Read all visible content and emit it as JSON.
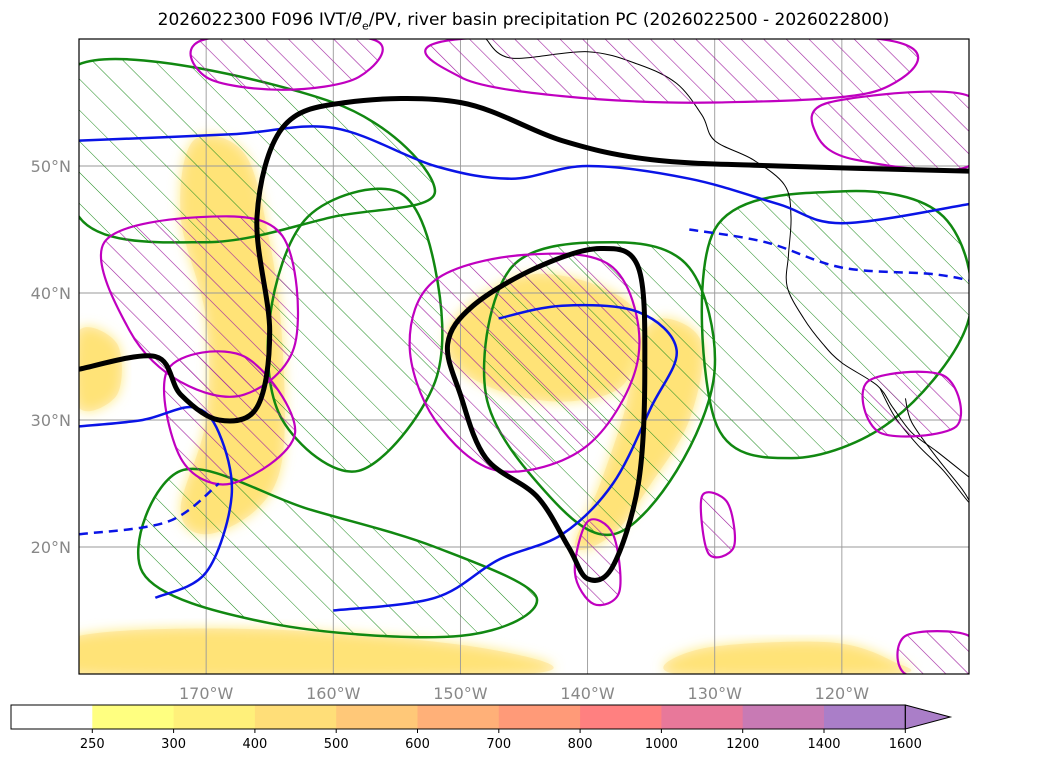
{
  "chart_data": {
    "type": "map-contour",
    "title_prefix": "2026022300 F096 IVT/",
    "title_theta": "θ",
    "title_sub": "e",
    "title_suffix": "/PV, river basin precipitation PC (2026022500 - 2026022800)",
    "lon_range": [
      -180,
      -110
    ],
    "lat_range": [
      10,
      60
    ],
    "x_ticks": [
      {
        "lon": -170,
        "label": "170°W"
      },
      {
        "lon": -160,
        "label": "160°W"
      },
      {
        "lon": -150,
        "label": "150°W"
      },
      {
        "lon": -140,
        "label": "140°W"
      },
      {
        "lon": -130,
        "label": "130°W"
      },
      {
        "lon": -120,
        "label": "120°W"
      }
    ],
    "y_ticks": [
      {
        "lat": 20,
        "label": "20°N"
      },
      {
        "lat": 30,
        "label": "30°N"
      },
      {
        "lat": 40,
        "label": "40°N"
      },
      {
        "lat": 50,
        "label": "50°N"
      }
    ],
    "grid": true,
    "colorbar": {
      "levels": [
        "250",
        "300",
        "400",
        "500",
        "600",
        "700",
        "800",
        "1000",
        "1200",
        "1400",
        "1600"
      ],
      "colors": [
        "#ffffff",
        "#ffff80",
        "#fff07a",
        "#ffde78",
        "#ffc878",
        "#ffb078",
        "#ff9a78",
        "#ff8080",
        "#e8789a",
        "#c87ab4",
        "#aa7ec8"
      ],
      "extend": "max"
    },
    "ivt_regions": [
      {
        "name": "ivt-west-band",
        "points": [
          [
            -171,
            52
          ],
          [
            -167,
            51
          ],
          [
            -165,
            44
          ],
          [
            -164,
            36
          ],
          [
            -164,
            27
          ],
          [
            -166,
            23
          ],
          [
            -170,
            21
          ],
          [
            -172,
            23
          ],
          [
            -170,
            30
          ],
          [
            -170,
            38
          ],
          [
            -172,
            46
          ]
        ]
      },
      {
        "name": "ivt-central-blob",
        "points": [
          [
            -148,
            40
          ],
          [
            -144,
            41.5
          ],
          [
            -139,
            40.5
          ],
          [
            -136,
            38
          ],
          [
            -137,
            33
          ],
          [
            -141,
            31.5
          ],
          [
            -146,
            32
          ],
          [
            -150,
            34
          ],
          [
            -151,
            37
          ]
        ]
      },
      {
        "name": "ivt-east-band",
        "points": [
          [
            -134,
            38
          ],
          [
            -131,
            36
          ],
          [
            -132,
            30
          ],
          [
            -135,
            25
          ],
          [
            -138,
            21
          ],
          [
            -141,
            20
          ],
          [
            -139,
            25
          ],
          [
            -137,
            31
          ],
          [
            -136,
            36
          ]
        ]
      },
      {
        "name": "ivt-south-left",
        "points": [
          [
            -180,
            13
          ],
          [
            -165,
            13.5
          ],
          [
            -148,
            12
          ],
          [
            -145,
            10
          ],
          [
            -180,
            10
          ]
        ]
      },
      {
        "name": "ivt-south-right",
        "points": [
          [
            -131,
            12
          ],
          [
            -121,
            12.5
          ],
          [
            -116,
            11
          ],
          [
            -116,
            10
          ],
          [
            -133,
            10
          ]
        ]
      },
      {
        "name": "ivt-far-west",
        "points": [
          [
            -180,
            37
          ],
          [
            -177,
            36
          ],
          [
            -177,
            32
          ],
          [
            -180,
            31
          ]
        ]
      }
    ],
    "pv_contours": [
      {
        "name": "pv-west-contour",
        "points": [
          [
            -180,
            34
          ],
          [
            -174,
            35
          ],
          [
            -172,
            32
          ],
          [
            -169,
            30
          ],
          [
            -166,
            31
          ],
          [
            -165,
            37
          ],
          [
            -166,
            46
          ],
          [
            -164,
            53
          ],
          [
            -159,
            55
          ],
          [
            -150,
            55
          ],
          [
            -142,
            52
          ],
          [
            -135,
            50.5
          ],
          [
            -125,
            50
          ],
          [
            -110,
            49.6
          ]
        ]
      },
      {
        "name": "pv-central-contour",
        "points": [
          [
            -149,
            39
          ],
          [
            -144,
            42
          ],
          [
            -139,
            43.5
          ],
          [
            -136,
            42
          ],
          [
            -135.5,
            34
          ],
          [
            -136,
            25
          ],
          [
            -138,
            18.5
          ],
          [
            -140,
            17.5
          ],
          [
            -141.5,
            20
          ],
          [
            -144,
            24
          ],
          [
            -148,
            27
          ],
          [
            -150,
            32
          ],
          [
            -151,
            36
          ]
        ]
      }
    ],
    "thetae_contours": [
      {
        "name": "thetae-north",
        "points": [
          [
            -180,
            52
          ],
          [
            -168,
            52.5
          ],
          [
            -160,
            53
          ],
          [
            -152,
            50
          ],
          [
            -146,
            49
          ],
          [
            -140,
            50
          ],
          [
            -132,
            49
          ],
          [
            -125,
            47
          ],
          [
            -120,
            45.5
          ],
          [
            -110,
            47
          ]
        ]
      },
      {
        "name": "thetae-central",
        "points": [
          [
            -147,
            38
          ],
          [
            -142,
            39
          ],
          [
            -136,
            38.5
          ],
          [
            -133,
            35.5
          ],
          [
            -135,
            31
          ],
          [
            -138,
            25
          ],
          [
            -142,
            21
          ],
          [
            -147,
            19
          ],
          [
            -152,
            16
          ],
          [
            -160,
            15
          ]
        ]
      },
      {
        "name": "thetae-west",
        "points": [
          [
            -180,
            29.5
          ],
          [
            -175,
            30
          ],
          [
            -171,
            31
          ],
          [
            -169,
            29
          ],
          [
            -168,
            24
          ],
          [
            -170,
            18
          ],
          [
            -174,
            16
          ]
        ]
      }
    ],
    "thetae_dashed_contours": [
      {
        "name": "thetae-dashed-1",
        "points": [
          [
            -180,
            21
          ],
          [
            -173,
            22
          ],
          [
            -169,
            25
          ]
        ]
      },
      {
        "name": "thetae-dashed-2",
        "points": [
          [
            -132,
            45
          ],
          [
            -126,
            44
          ],
          [
            -120,
            42
          ],
          [
            -113,
            41.5
          ],
          [
            -110,
            41
          ]
        ]
      }
    ],
    "hatched_magenta_regions": [
      {
        "name": "hatch-top-left",
        "points": [
          [
            -170,
            60
          ],
          [
            -157,
            60
          ],
          [
            -158,
            57
          ],
          [
            -164,
            56
          ],
          [
            -170,
            57
          ]
        ]
      },
      {
        "name": "hatch-top-mid",
        "points": [
          [
            -150,
            60
          ],
          [
            -117,
            60
          ],
          [
            -117,
            56
          ],
          [
            -130,
            55
          ],
          [
            -142,
            55.5
          ],
          [
            -150,
            57
          ]
        ]
      },
      {
        "name": "hatch-top-right",
        "points": [
          [
            -121,
            55
          ],
          [
            -110,
            55.5
          ],
          [
            -110,
            50
          ],
          [
            -119,
            50.5
          ],
          [
            -122,
            52.5
          ]
        ]
      },
      {
        "name": "hatch-west",
        "points": [
          [
            -178,
            44
          ],
          [
            -170,
            46
          ],
          [
            -164,
            44.5
          ],
          [
            -163,
            36
          ],
          [
            -167,
            32
          ],
          [
            -172,
            33
          ],
          [
            -176,
            37
          ]
        ]
      },
      {
        "name": "hatch-southwest",
        "points": [
          [
            -173,
            34
          ],
          [
            -167,
            35
          ],
          [
            -163,
            29
          ],
          [
            -168,
            25
          ],
          [
            -172,
            27
          ]
        ]
      },
      {
        "name": "hatch-central",
        "points": [
          [
            -152,
            41
          ],
          [
            -145,
            43
          ],
          [
            -138,
            42
          ],
          [
            -136,
            35
          ],
          [
            -140,
            28
          ],
          [
            -147,
            26
          ],
          [
            -152,
            30
          ],
          [
            -154,
            36
          ]
        ]
      },
      {
        "name": "hatch-south-small",
        "points": [
          [
            -140,
            22
          ],
          [
            -138,
            21
          ],
          [
            -137.5,
            16.5
          ],
          [
            -139.5,
            15.5
          ],
          [
            -141,
            18
          ]
        ]
      },
      {
        "name": "hatch-east-small",
        "points": [
          [
            -131,
            24
          ],
          [
            -129,
            23.5
          ],
          [
            -128.5,
            20
          ],
          [
            -130.5,
            19.5
          ]
        ]
      },
      {
        "name": "hatch-east-coast",
        "points": [
          [
            -118,
            33
          ],
          [
            -112,
            33.5
          ],
          [
            -111,
            29.5
          ],
          [
            -117,
            29
          ]
        ]
      },
      {
        "name": "hatch-bottom-right",
        "points": [
          [
            -115,
            13
          ],
          [
            -110,
            13
          ],
          [
            -110,
            10
          ],
          [
            -115,
            10
          ]
        ]
      }
    ],
    "green_hatched_regions": [
      {
        "name": "green-west",
        "points": [
          [
            -180,
            58
          ],
          [
            -160,
            55
          ],
          [
            -152,
            48
          ],
          [
            -160,
            46
          ],
          [
            -170,
            44
          ],
          [
            -180,
            46
          ]
        ]
      },
      {
        "name": "green-central-west",
        "points": [
          [
            -162,
            46
          ],
          [
            -155,
            48
          ],
          [
            -152,
            42
          ],
          [
            -152,
            33
          ],
          [
            -158,
            26
          ],
          [
            -164,
            30
          ],
          [
            -165,
            38
          ]
        ]
      },
      {
        "name": "green-central",
        "points": [
          [
            -146,
            42
          ],
          [
            -138,
            44
          ],
          [
            -132,
            42
          ],
          [
            -130,
            34
          ],
          [
            -133,
            26
          ],
          [
            -138,
            21
          ],
          [
            -143,
            24
          ],
          [
            -148,
            32
          ]
        ]
      },
      {
        "name": "green-east",
        "points": [
          [
            -130,
            45
          ],
          [
            -120,
            48
          ],
          [
            -112,
            46
          ],
          [
            -110,
            38
          ],
          [
            -116,
            30
          ],
          [
            -124,
            27
          ],
          [
            -130,
            30
          ]
        ]
      },
      {
        "name": "green-south",
        "points": [
          [
            -172,
            26
          ],
          [
            -162,
            23
          ],
          [
            -152,
            20
          ],
          [
            -144,
            16
          ],
          [
            -150,
            13
          ],
          [
            -165,
            14
          ],
          [
            -175,
            18
          ]
        ]
      }
    ],
    "coastline": [
      [
        -148,
        60
      ],
      [
        -146,
        58.5
      ],
      [
        -140,
        59
      ],
      [
        -136,
        58
      ],
      [
        -133,
        56.5
      ],
      [
        -131,
        54
      ],
      [
        -130,
        52
      ],
      [
        -127,
        50.5
      ],
      [
        -124.5,
        48.5
      ],
      [
        -124,
        46
      ],
      [
        -124.2,
        43
      ],
      [
        -124.3,
        40.5
      ],
      [
        -123,
        38
      ],
      [
        -121.5,
        36
      ],
      [
        -120,
        34.5
      ],
      [
        -117.2,
        32.7
      ],
      [
        -116,
        31
      ],
      [
        -114.5,
        29
      ],
      [
        -112.5,
        27.5
      ],
      [
        -110,
        25.5
      ]
    ],
    "baja": [
      [
        -117,
        32.5
      ],
      [
        -115.8,
        30.2
      ],
      [
        -114,
        28
      ],
      [
        -112,
        26
      ],
      [
        -110,
        23.5
      ],
      [
        -110.5,
        24.5
      ],
      [
        -112.5,
        27
      ],
      [
        -114.5,
        29.8
      ],
      [
        -115,
        31.7
      ]
    ]
  }
}
